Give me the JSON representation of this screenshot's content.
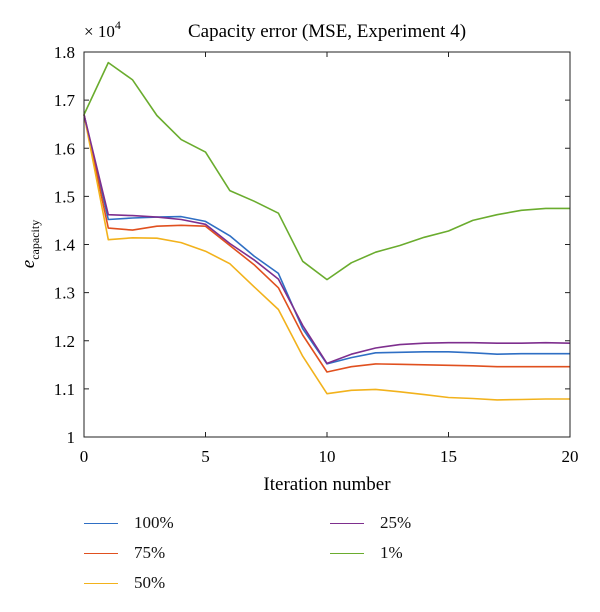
{
  "chart_data": {
    "type": "line",
    "title": "Capacity error (MSE, Experiment 4)",
    "xlabel": "Iteration number",
    "ylabel": "e",
    "ylabel_subscript": "capacity",
    "y_multiplier": "× 10",
    "y_multiplier_exp": "4",
    "xlim": [
      0,
      20
    ],
    "ylim": [
      1.0,
      1.8
    ],
    "xticks": [
      "0",
      "5",
      "10",
      "15",
      "20"
    ],
    "yticks": [
      "1",
      "1.1",
      "1.2",
      "1.3",
      "1.4",
      "1.5",
      "1.6",
      "1.7",
      "1.8"
    ],
    "x": [
      0,
      1,
      2,
      3,
      4,
      5,
      6,
      7,
      8,
      9,
      10,
      11,
      12,
      13,
      14,
      15,
      16,
      17,
      18,
      19,
      20
    ],
    "series": [
      {
        "name": "100%",
        "color": "#2f6fc4",
        "values": [
          1.67,
          1.452,
          1.455,
          1.457,
          1.458,
          1.448,
          1.418,
          1.376,
          1.34,
          1.225,
          1.152,
          1.165,
          1.175,
          1.176,
          1.177,
          1.177,
          1.175,
          1.172,
          1.173,
          1.173,
          1.173
        ]
      },
      {
        "name": "75%",
        "color": "#e0501f",
        "values": [
          1.67,
          1.434,
          1.43,
          1.438,
          1.44,
          1.438,
          1.398,
          1.358,
          1.31,
          1.212,
          1.135,
          1.146,
          1.152,
          1.151,
          1.15,
          1.149,
          1.148,
          1.146,
          1.146,
          1.146,
          1.146
        ]
      },
      {
        "name": "50%",
        "color": "#f2b21c",
        "values": [
          1.67,
          1.41,
          1.414,
          1.413,
          1.404,
          1.386,
          1.36,
          1.312,
          1.265,
          1.168,
          1.09,
          1.097,
          1.099,
          1.094,
          1.088,
          1.082,
          1.08,
          1.077,
          1.078,
          1.079,
          1.079
        ]
      },
      {
        "name": "25%",
        "color": "#7e2f8e",
        "values": [
          1.67,
          1.462,
          1.46,
          1.457,
          1.452,
          1.442,
          1.402,
          1.368,
          1.328,
          1.232,
          1.153,
          1.172,
          1.185,
          1.192,
          1.195,
          1.196,
          1.196,
          1.195,
          1.195,
          1.196,
          1.195
        ]
      },
      {
        "name": "1%",
        "color": "#6aac2e",
        "values": [
          1.67,
          1.778,
          1.742,
          1.668,
          1.618,
          1.592,
          1.512,
          1.49,
          1.465,
          1.365,
          1.327,
          1.362,
          1.384,
          1.398,
          1.415,
          1.428,
          1.45,
          1.462,
          1.471,
          1.475,
          1.475
        ]
      }
    ],
    "legend_order": [
      0,
      3,
      1,
      4,
      2
    ],
    "legend_placement": "bottom, two columns",
    "grid": false
  }
}
